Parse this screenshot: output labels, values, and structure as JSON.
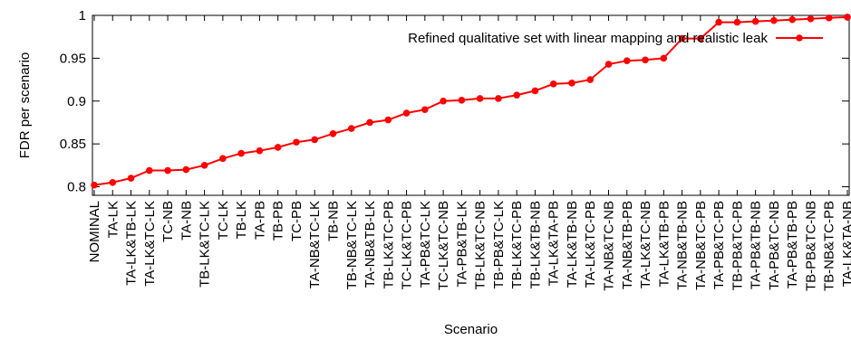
{
  "chart_data": {
    "type": "line",
    "title": "",
    "xlabel": "Scenario",
    "ylabel": "FDR per scenario",
    "ylim": [
      0.79,
      1.0
    ],
    "yticks": [
      0.8,
      0.85,
      0.9,
      0.95,
      1
    ],
    "ytick_labels": [
      "0.8",
      "0.85",
      "0.9",
      "0.95",
      "1"
    ],
    "grid": false,
    "legend_position": "top-right",
    "categories": [
      "NOMINAL",
      "TA-LK",
      "TA-LK&TB-LK",
      "TA-LK&TC-LK",
      "TC-NB",
      "TA-NB",
      "TB-LK&TC-LK",
      "TC-LK",
      "TB-LK",
      "TA-PB",
      "TB-PB",
      "TC-PB",
      "TA-NB&TC-LK",
      "TB-NB",
      "TB-NB&TC-LK",
      "TA-NB&TB-LK",
      "TB-LK&TC-PB",
      "TC-LK&TC-PB",
      "TA-PB&TC-LK",
      "TC-LK&TC-NB",
      "TA-PB&TB-LK",
      "TB-LK&TC-NB",
      "TB-PB&TC-LK",
      "TB-LK&TC-PB",
      "TB-LK&TB-NB",
      "TA-LK&TA-PB",
      "TA-LK&TB-NB",
      "TA-LK&TC-PB",
      "TA-NB&TC-NB",
      "TA-NB&TB-PB",
      "TA-LK&TC-NB",
      "TA-LK&TB-PB",
      "TA-NB&TB-NB",
      "TA-NB&TC-PB",
      "TA-PB&TC-PB",
      "TB-PB&TC-PB",
      "TA-PB&TB-NB",
      "TA-PB&TC-NB",
      "TA-PB&TB-PB",
      "TB-PB&TC-NB",
      "TB-NB&TC-PB",
      "TA-LK&TA-NB"
    ],
    "series": [
      {
        "name": "Refined qualitative set with linear mapping and realistic leak",
        "color": "#ff0000",
        "values": [
          0.802,
          0.805,
          0.81,
          0.819,
          0.819,
          0.82,
          0.825,
          0.833,
          0.839,
          0.842,
          0.846,
          0.852,
          0.855,
          0.862,
          0.868,
          0.875,
          0.878,
          0.886,
          0.89,
          0.9,
          0.901,
          0.903,
          0.903,
          0.907,
          0.912,
          0.92,
          0.921,
          0.925,
          0.943,
          0.947,
          0.948,
          0.95,
          0.973,
          0.973,
          0.992,
          0.992,
          0.993,
          0.994,
          0.995,
          0.996,
          0.997,
          0.998
        ]
      }
    ]
  }
}
